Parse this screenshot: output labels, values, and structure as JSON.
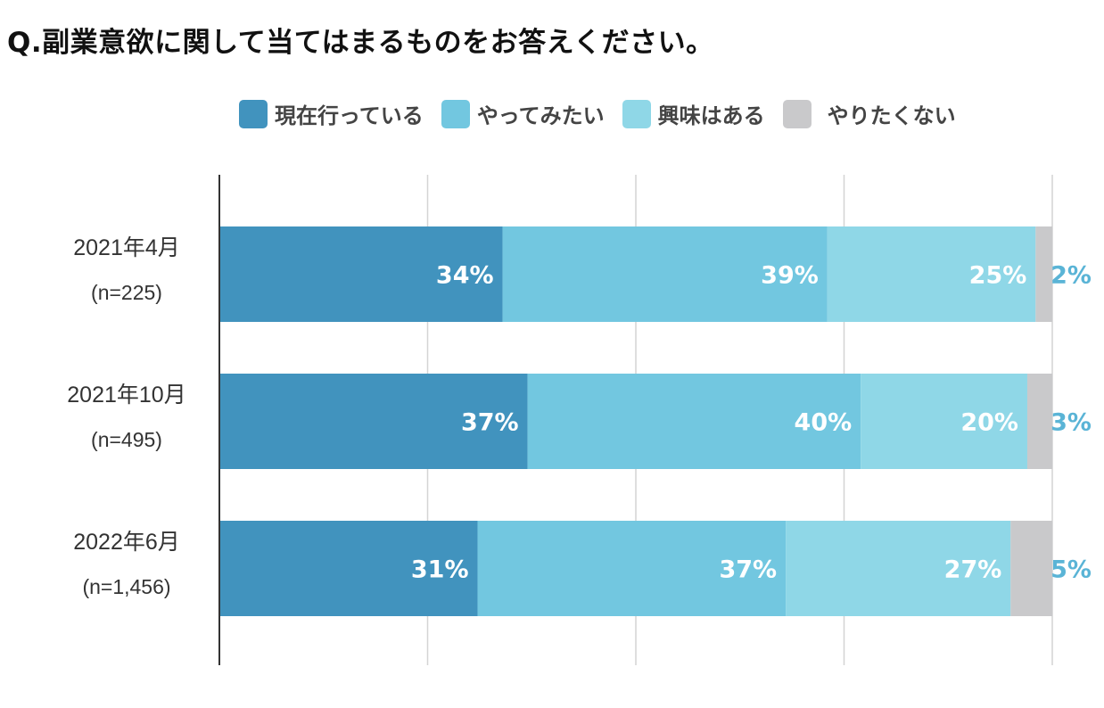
{
  "title": "Q.副業意欲に関して当てはまるものをお答えください。",
  "chart_data": {
    "type": "bar",
    "orientation": "horizontal",
    "stacked": true,
    "percent_stacked": true,
    "categories": [
      {
        "label": "2021年4月",
        "sublabel": "(n=225)"
      },
      {
        "label": "2021年10月",
        "sublabel": "(n=495)"
      },
      {
        "label": "2022年6月",
        "sublabel": "(n=1,456)"
      }
    ],
    "series": [
      {
        "name": "現在行っている",
        "color": "#4193BE",
        "values": [
          34,
          37,
          31
        ]
      },
      {
        "name": "やってみたい",
        "color": "#72C7E0",
        "values": [
          39,
          40,
          37
        ]
      },
      {
        "name": "興味はある",
        "color": "#8FD7E7",
        "values": [
          25,
          20,
          27
        ]
      },
      {
        "name": "やりたくない",
        "color": "#C9C9CB",
        "values": [
          2,
          3,
          5
        ]
      }
    ],
    "data_label_suffix": "%",
    "outside_label_color": "#5AB4D6",
    "xlim": [
      0,
      100
    ],
    "grid": true,
    "legend_position": "top"
  }
}
